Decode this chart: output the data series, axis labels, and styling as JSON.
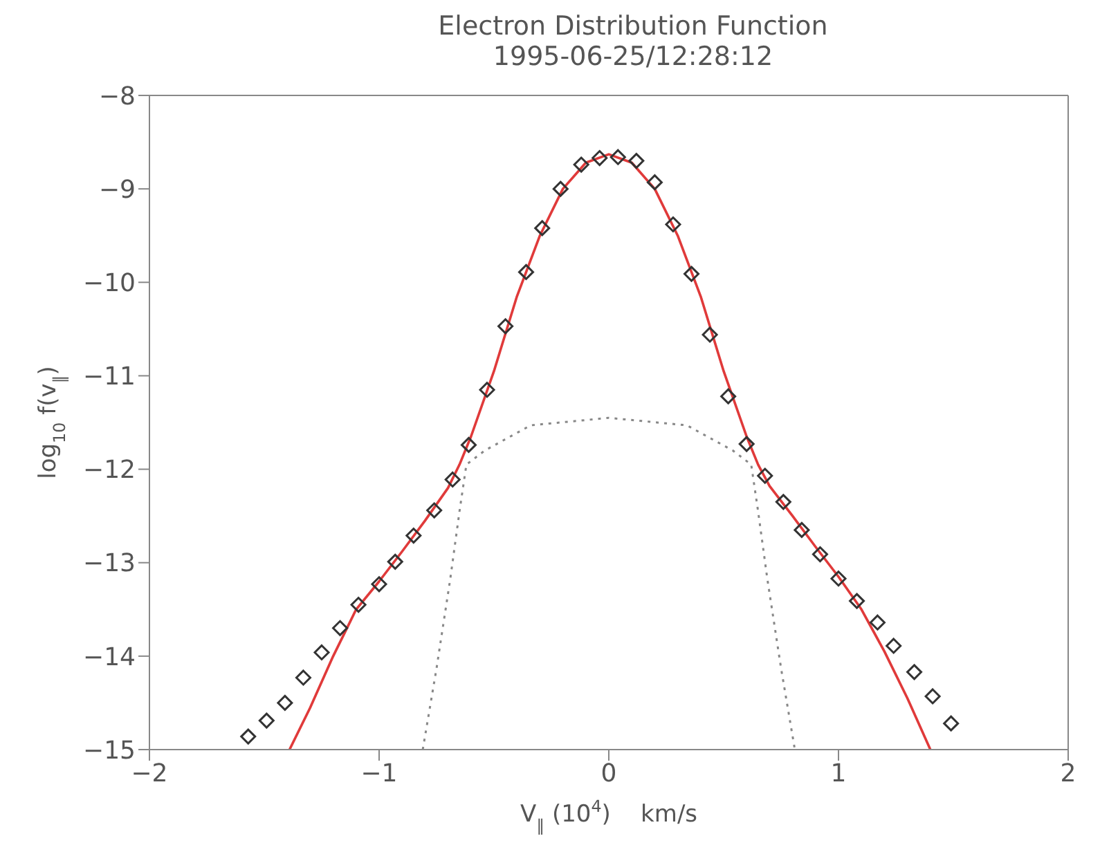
{
  "chart_data": {
    "type": "scatter",
    "title": "Electron Distribution Function",
    "subtitle": "1995-06-25/12:28:12",
    "xlabel": "V$_{∥}$ (10$^{4}$)    km/s",
    "ylabel": "log$_{10}$ f(v$_{∥}$)",
    "xlim": [
      -2,
      2
    ],
    "xticks": [
      -2,
      -1,
      0,
      1,
      2
    ],
    "ylim": [
      -15,
      -8
    ],
    "yticks": [
      -8,
      -9,
      -10,
      -11,
      -12,
      -13,
      -14,
      -15
    ],
    "grid": false,
    "legend": false,
    "series": [
      {
        "marker": "diamond",
        "color": "#333333",
        "x": [
          -1.57,
          -1.49,
          -1.41,
          -1.33,
          -1.25,
          -1.17,
          -1.09,
          -1.0,
          -0.93,
          -0.85,
          -0.76,
          -0.68,
          -0.61,
          -0.53,
          -0.45,
          -0.36,
          -0.29,
          -0.21,
          -0.12,
          -0.04,
          0.04,
          0.12,
          0.2,
          0.28,
          0.36,
          0.44,
          0.52,
          0.6,
          0.68,
          0.76,
          0.84,
          0.92,
          1.0,
          1.08,
          1.17,
          1.24,
          1.33,
          1.41,
          1.49
        ],
        "values": [
          -14.86,
          -14.69,
          -14.5,
          -14.23,
          -13.96,
          -13.7,
          -13.45,
          -13.23,
          -12.99,
          -12.71,
          -12.44,
          -12.11,
          -11.74,
          -11.15,
          -10.47,
          -9.89,
          -9.42,
          -9.0,
          -8.74,
          -8.67,
          -8.66,
          -8.7,
          -8.93,
          -9.38,
          -9.91,
          -10.56,
          -11.22,
          -11.73,
          -12.07,
          -12.35,
          -12.65,
          -12.91,
          -13.17,
          -13.41,
          -13.64,
          -13.89,
          -14.17,
          -14.43,
          -14.72
        ]
      },
      {
        "type": "line",
        "marker": "none",
        "line_style": "solid",
        "color": "#e03a3a",
        "x": [
          -1.39,
          -1.3,
          -1.2,
          -1.1,
          -1.0,
          -0.9,
          -0.8,
          -0.7,
          -0.65,
          -0.6,
          -0.5,
          -0.4,
          -0.3,
          -0.2,
          -0.1,
          0,
          0.1,
          0.2,
          0.3,
          0.4,
          0.5,
          0.6,
          0.65,
          0.7,
          0.8,
          0.9,
          1.0,
          1.1,
          1.2,
          1.3,
          1.4
        ],
        "values": [
          -15,
          -14.55,
          -14.0,
          -13.5,
          -13.2,
          -12.88,
          -12.55,
          -12.2,
          -11.95,
          -11.65,
          -10.95,
          -10.15,
          -9.5,
          -9.0,
          -8.72,
          -8.63,
          -8.72,
          -9.0,
          -9.5,
          -10.15,
          -10.95,
          -11.65,
          -11.95,
          -12.18,
          -12.5,
          -12.83,
          -13.15,
          -13.5,
          -13.95,
          -14.45,
          -15
        ]
      },
      {
        "type": "line",
        "marker": "none",
        "line_style": "dotted",
        "color": "#888888",
        "x": [
          -0.81,
          -0.75,
          -0.69,
          -0.65,
          -0.62,
          -0.54,
          -0.34,
          0,
          0.34,
          0.54,
          0.62,
          0.65,
          0.69,
          0.75,
          0.81
        ],
        "values": [
          -15,
          -14.13,
          -13.17,
          -12.45,
          -11.95,
          -11.8,
          -11.53,
          -11.45,
          -11.53,
          -11.8,
          -11.95,
          -12.45,
          -13.17,
          -14.13,
          -15
        ]
      }
    ]
  }
}
